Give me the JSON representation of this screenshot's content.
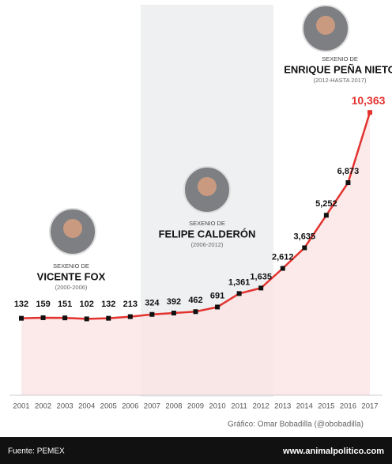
{
  "chart_data": {
    "type": "line",
    "categories": [
      "2001",
      "2002",
      "2003",
      "2004",
      "2005",
      "2006",
      "2007",
      "2008",
      "2009",
      "2010",
      "2011",
      "2012",
      "2013",
      "2014",
      "2015",
      "2016",
      "2017"
    ],
    "values": [
      132,
      159,
      151,
      102,
      132,
      213,
      324,
      392,
      462,
      691,
      1361,
      1635,
      2612,
      3635,
      5252,
      6873,
      10363
    ],
    "value_labels": [
      "132",
      "159",
      "151",
      "102",
      "132",
      "213",
      "324",
      "392",
      "462",
      "691",
      "1,361",
      "1,635",
      "2,612",
      "3,635",
      "5,252",
      "6,873",
      "10,363"
    ],
    "color": "#e2332f",
    "ylim": [
      0,
      11000
    ],
    "annotations": [
      {
        "label": "SEXENIO DE",
        "name": "VICENTE FOX",
        "period": "(2000-2006)"
      },
      {
        "label": "SEXENIO DE",
        "name": "FELIPE CALDERÓN",
        "period": "(2006-2012)"
      },
      {
        "label": "SEXENIO DE",
        "name": "ENRIQUE PEÑA NIETO",
        "period": "(2012-HASTA 2017)"
      }
    ],
    "credit": "Gráfico: Omar Bobadilla (@obobadilla)",
    "source": "Fuente: PEMEX",
    "website": "www.animalpolitico.com"
  }
}
